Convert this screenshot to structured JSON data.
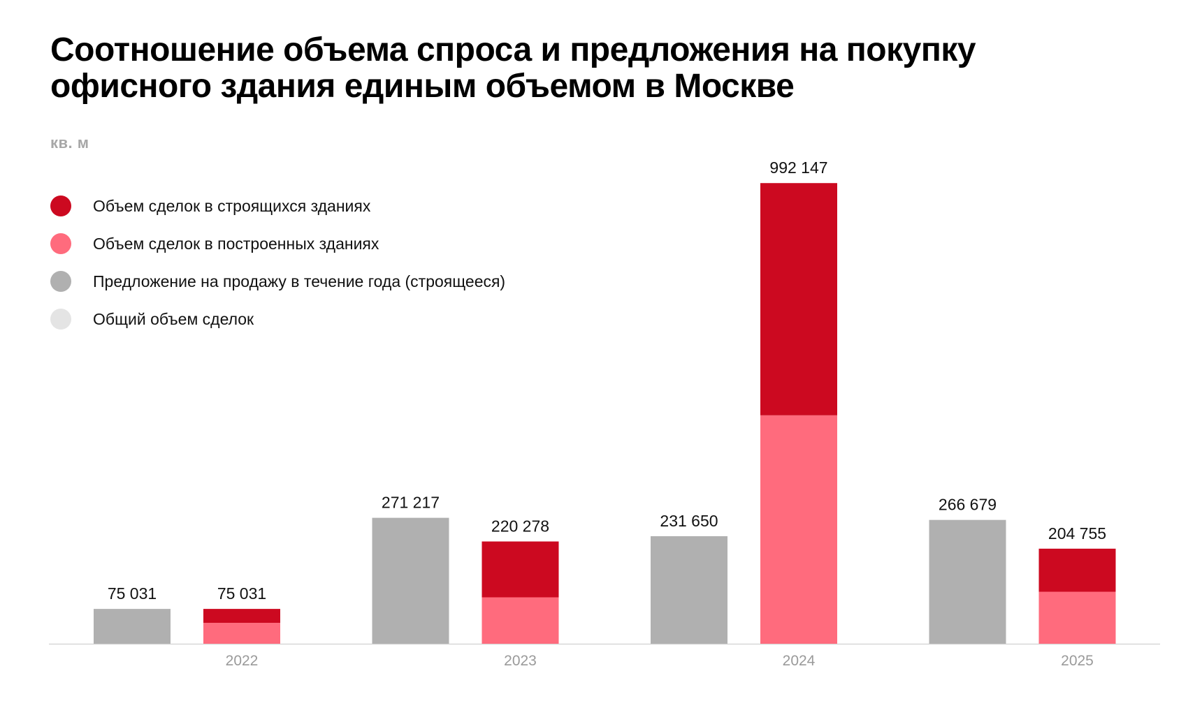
{
  "title_lines": [
    "Соотношение объема спроса и предложения на покупку",
    "офисного здания единым объемом в Москве"
  ],
  "unit_label": "кв. м",
  "legend": [
    {
      "label": "Объем сделок в строящихся зданиях",
      "color": "#cc0920"
    },
    {
      "label": "Объем сделок в построенных зданиях",
      "color": "#ff6b7d"
    },
    {
      "label": "Предложение на продажу в течение года (строящееся)",
      "color": "#b0b0b0"
    },
    {
      "label": "Общий объем сделок",
      "color": "#e4e4e4"
    }
  ],
  "chart_data": {
    "type": "bar",
    "title": "Соотношение объема спроса и предложения на покупку офисного здания единым объемом в Москве",
    "ylabel": "кв. м",
    "xlabel": "",
    "ylim": [
      0,
      1000000
    ],
    "categories": [
      "2022",
      "2023",
      "2024",
      "2025"
    ],
    "series": [
      {
        "name": "Предложение на продажу в течение года (строящееся)",
        "color": "#b0b0b0",
        "stack": "supply",
        "values": [
          75031,
          271217,
          231650,
          266679
        ]
      },
      {
        "name": "Объем сделок в построенных зданиях",
        "color": "#ff6b7d",
        "stack": "deals",
        "values": [
          45000,
          100000,
          492000,
          112000
        ]
      },
      {
        "name": "Объем сделок в строящихся зданиях",
        "color": "#cc0920",
        "stack": "deals",
        "values": [
          30031,
          120278,
          500147,
          92755
        ]
      }
    ],
    "totals": {
      "supply": [
        75031,
        271217,
        231650,
        266679
      ],
      "deals": [
        75031,
        220278,
        992147,
        204755
      ]
    },
    "value_labels": {
      "supply": [
        "75 031",
        "271 217",
        "231 650",
        "266 679"
      ],
      "deals": [
        "75 031",
        "220 278",
        "992 147",
        "204 755"
      ]
    }
  }
}
